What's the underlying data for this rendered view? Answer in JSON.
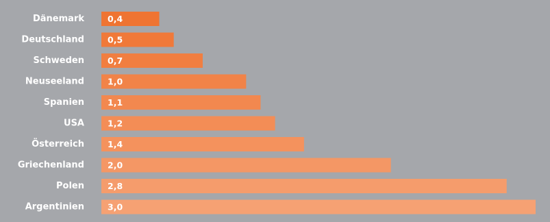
{
  "chart_data": {
    "type": "bar",
    "orientation": "horizontal",
    "categories": [
      "Dänemark",
      "Deutschland",
      "Schweden",
      "Neuseeland",
      "Spanien",
      "USA",
      "Österreich",
      "Griechenland",
      "Polen",
      "Argentinien"
    ],
    "values": [
      0.4,
      0.5,
      0.7,
      1.0,
      1.1,
      1.2,
      1.4,
      2.0,
      2.8,
      3.0
    ],
    "value_labels": [
      "0,4",
      "0,5",
      "0,7",
      "1,0",
      "1,1",
      "1,2",
      "1,4",
      "2,0",
      "2,8",
      "3,0"
    ],
    "xlim": [
      0,
      3.0
    ],
    "grid": false,
    "legend": "none",
    "colors": {
      "background": "#a5a7ab",
      "bar_start": "#ef7432",
      "bar_end": "#f6a173",
      "text": "#ffffff"
    }
  }
}
